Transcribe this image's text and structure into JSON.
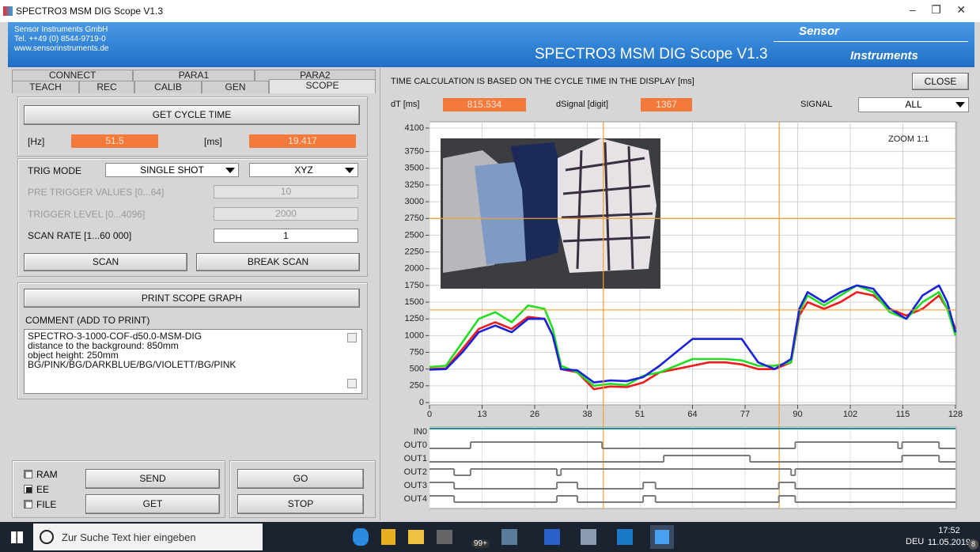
{
  "window": {
    "title": "SPECTRO3 MSM DIG Scope V1.3"
  },
  "header": {
    "company": [
      "Sensor Instruments GmbH",
      "Tel. ++49 (0) 8544-9719-0",
      "www.sensorinstruments.de"
    ],
    "app_title": "SPECTRO3 MSM DIG Scope V1.3",
    "logo_top": "Sensor",
    "logo_bottom": "Instruments"
  },
  "tabs": {
    "row1": [
      "CONNECT",
      "PARA1",
      "PARA2"
    ],
    "row2": [
      "TEACH",
      "REC",
      "CALIB",
      "GEN",
      "SCOPE"
    ],
    "active": 4
  },
  "cycle": {
    "button": "GET CYCLE TIME",
    "hz_label": "[Hz]",
    "hz_value": 51.5,
    "ms_label": "[ms]",
    "ms_value": 19.417
  },
  "trigger": {
    "mode_label": "TRIG MODE",
    "mode": "SINGLE SHOT",
    "axis": "XYZ",
    "pre_label": "PRE TRIGGER VALUES [0...64]",
    "pre_value": 10,
    "level_label": "TRIGGER LEVEL [0...4096]",
    "level_value": 2000,
    "rate_label": "SCAN RATE [1...60 000]",
    "rate_value": 1,
    "scan": "SCAN",
    "break_scan": "BREAK SCAN"
  },
  "print": {
    "button": "PRINT SCOPE GRAPH",
    "comment_label": "COMMENT (ADD TO PRINT)",
    "comment_lines": [
      "SPECTRO-3-1000-COF-d50.0-MSM-DIG",
      "distance to the background: 850mm",
      "object height: 250mm",
      "BG/PINK/BG/DARKBLUE/BG/VIOLETT/BG/PINK"
    ]
  },
  "memory": {
    "options": [
      "RAM",
      "EE",
      "FILE"
    ],
    "selected": 1,
    "send": "SEND",
    "get": "GET",
    "go": "GO",
    "stop": "STOP"
  },
  "scope": {
    "info": "TIME CALCULATION IS BASED ON THE CYCLE TIME IN THE DISPLAY [ms]",
    "close": "CLOSE",
    "dt_label": "dT [ms]",
    "dt_value": 815.534,
    "dsignal_label": "dSignal [digit]",
    "dsignal_value": 1367,
    "signal_label": "SIGNAL",
    "signal_value": "ALL",
    "zoom": "ZOOM 1:1"
  },
  "chart_data": [
    {
      "type": "line",
      "x": [
        0,
        4,
        8,
        12,
        16,
        20,
        24,
        28,
        30,
        32,
        36,
        40,
        44,
        48,
        52,
        56,
        60,
        64,
        68,
        72,
        76,
        80,
        84,
        88,
        90,
        92,
        96,
        100,
        104,
        108,
        112,
        116,
        120,
        124,
        126,
        128
      ],
      "series": [
        {
          "color": "#ee1c1c",
          "values": [
            500,
            510,
            800,
            1100,
            1200,
            1100,
            1280,
            1250,
            1000,
            500,
            450,
            200,
            240,
            230,
            300,
            450,
            500,
            550,
            600,
            600,
            570,
            500,
            500,
            600,
            1300,
            1500,
            1400,
            1500,
            1650,
            1600,
            1400,
            1300,
            1400,
            1600,
            1400,
            1100
          ]
        },
        {
          "color": "#22dd22",
          "values": [
            530,
            550,
            900,
            1250,
            1350,
            1200,
            1450,
            1400,
            1100,
            550,
            450,
            250,
            280,
            260,
            400,
            450,
            550,
            650,
            650,
            650,
            630,
            550,
            550,
            600,
            1350,
            1600,
            1450,
            1600,
            1750,
            1650,
            1350,
            1250,
            1500,
            1650,
            1400,
            1000
          ]
        },
        {
          "color": "#1a22d8",
          "values": [
            490,
            500,
            750,
            1050,
            1150,
            1050,
            1250,
            1250,
            1000,
            500,
            480,
            300,
            330,
            320,
            380,
            550,
            750,
            950,
            950,
            950,
            950,
            600,
            500,
            650,
            1400,
            1650,
            1500,
            1650,
            1750,
            1700,
            1400,
            1250,
            1600,
            1750,
            1500,
            1050
          ]
        }
      ],
      "xlim": [
        0,
        128
      ],
      "xticks": [
        0,
        {
          "value": 12.8,
          "label": "13"
        },
        {
          "value": 25.6,
          "label": "26"
        },
        {
          "value": 38.4,
          "label": "38"
        },
        {
          "value": 51.2,
          "label": "51"
        },
        64,
        {
          "value": 76.8,
          "label": "77"
        },
        {
          "value": 89.6,
          "label": "90"
        },
        {
          "value": 102.4,
          "label": "102"
        },
        {
          "value": 115.2,
          "label": "115"
        },
        128
      ],
      "ylim": [
        0,
        4100
      ],
      "yticks": [
        0,
        250,
        500,
        750,
        1000,
        1250,
        1500,
        1750,
        2000,
        2250,
        2500,
        2750,
        3000,
        3250,
        3500,
        3750,
        4100
      ],
      "grid": true,
      "cursors": {
        "color": "#f0a030",
        "x": [
          42.3,
          85.1
        ],
        "y": [
          2750,
          1383
        ]
      }
    },
    {
      "type": "step",
      "xlim": [
        0,
        128
      ],
      "series": [
        {
          "name": "IN0",
          "color": "#1f8f8f",
          "x": [
            0
          ],
          "values": [
            1
          ]
        },
        {
          "name": "OUT0",
          "color": "#7a7a7a",
          "x": [
            0,
            10,
            42,
            89,
            114,
            115,
            124
          ],
          "values": [
            0,
            1,
            0,
            1,
            0,
            1,
            0
          ]
        },
        {
          "name": "OUT1",
          "color": "#7a7a7a",
          "x": [
            0,
            57,
            78,
            115,
            124
          ],
          "values": [
            0,
            1,
            0,
            1,
            0
          ]
        },
        {
          "name": "OUT2",
          "color": "#7a7a7a",
          "x": [
            0,
            6,
            10,
            31,
            32,
            88,
            89
          ],
          "values": [
            1,
            0,
            1,
            0,
            1,
            0,
            1
          ]
        },
        {
          "name": "OUT3",
          "color": "#7a7a7a",
          "x": [
            0,
            6,
            31,
            36,
            52,
            55,
            85,
            89
          ],
          "values": [
            1,
            0,
            1,
            0,
            1,
            0,
            1,
            0
          ]
        },
        {
          "name": "OUT4",
          "color": "#7a7a7a",
          "x": [
            0,
            6,
            31,
            36,
            52,
            55,
            85,
            89
          ],
          "values": [
            1,
            0,
            1,
            0,
            1,
            0,
            1,
            0
          ]
        }
      ]
    }
  ],
  "taskbar": {
    "search": "Zur Suche Text hier eingeben",
    "badge": "99+",
    "language": "DEU",
    "time": "17:52",
    "date": "11.05.2019",
    "notifications": 8
  }
}
